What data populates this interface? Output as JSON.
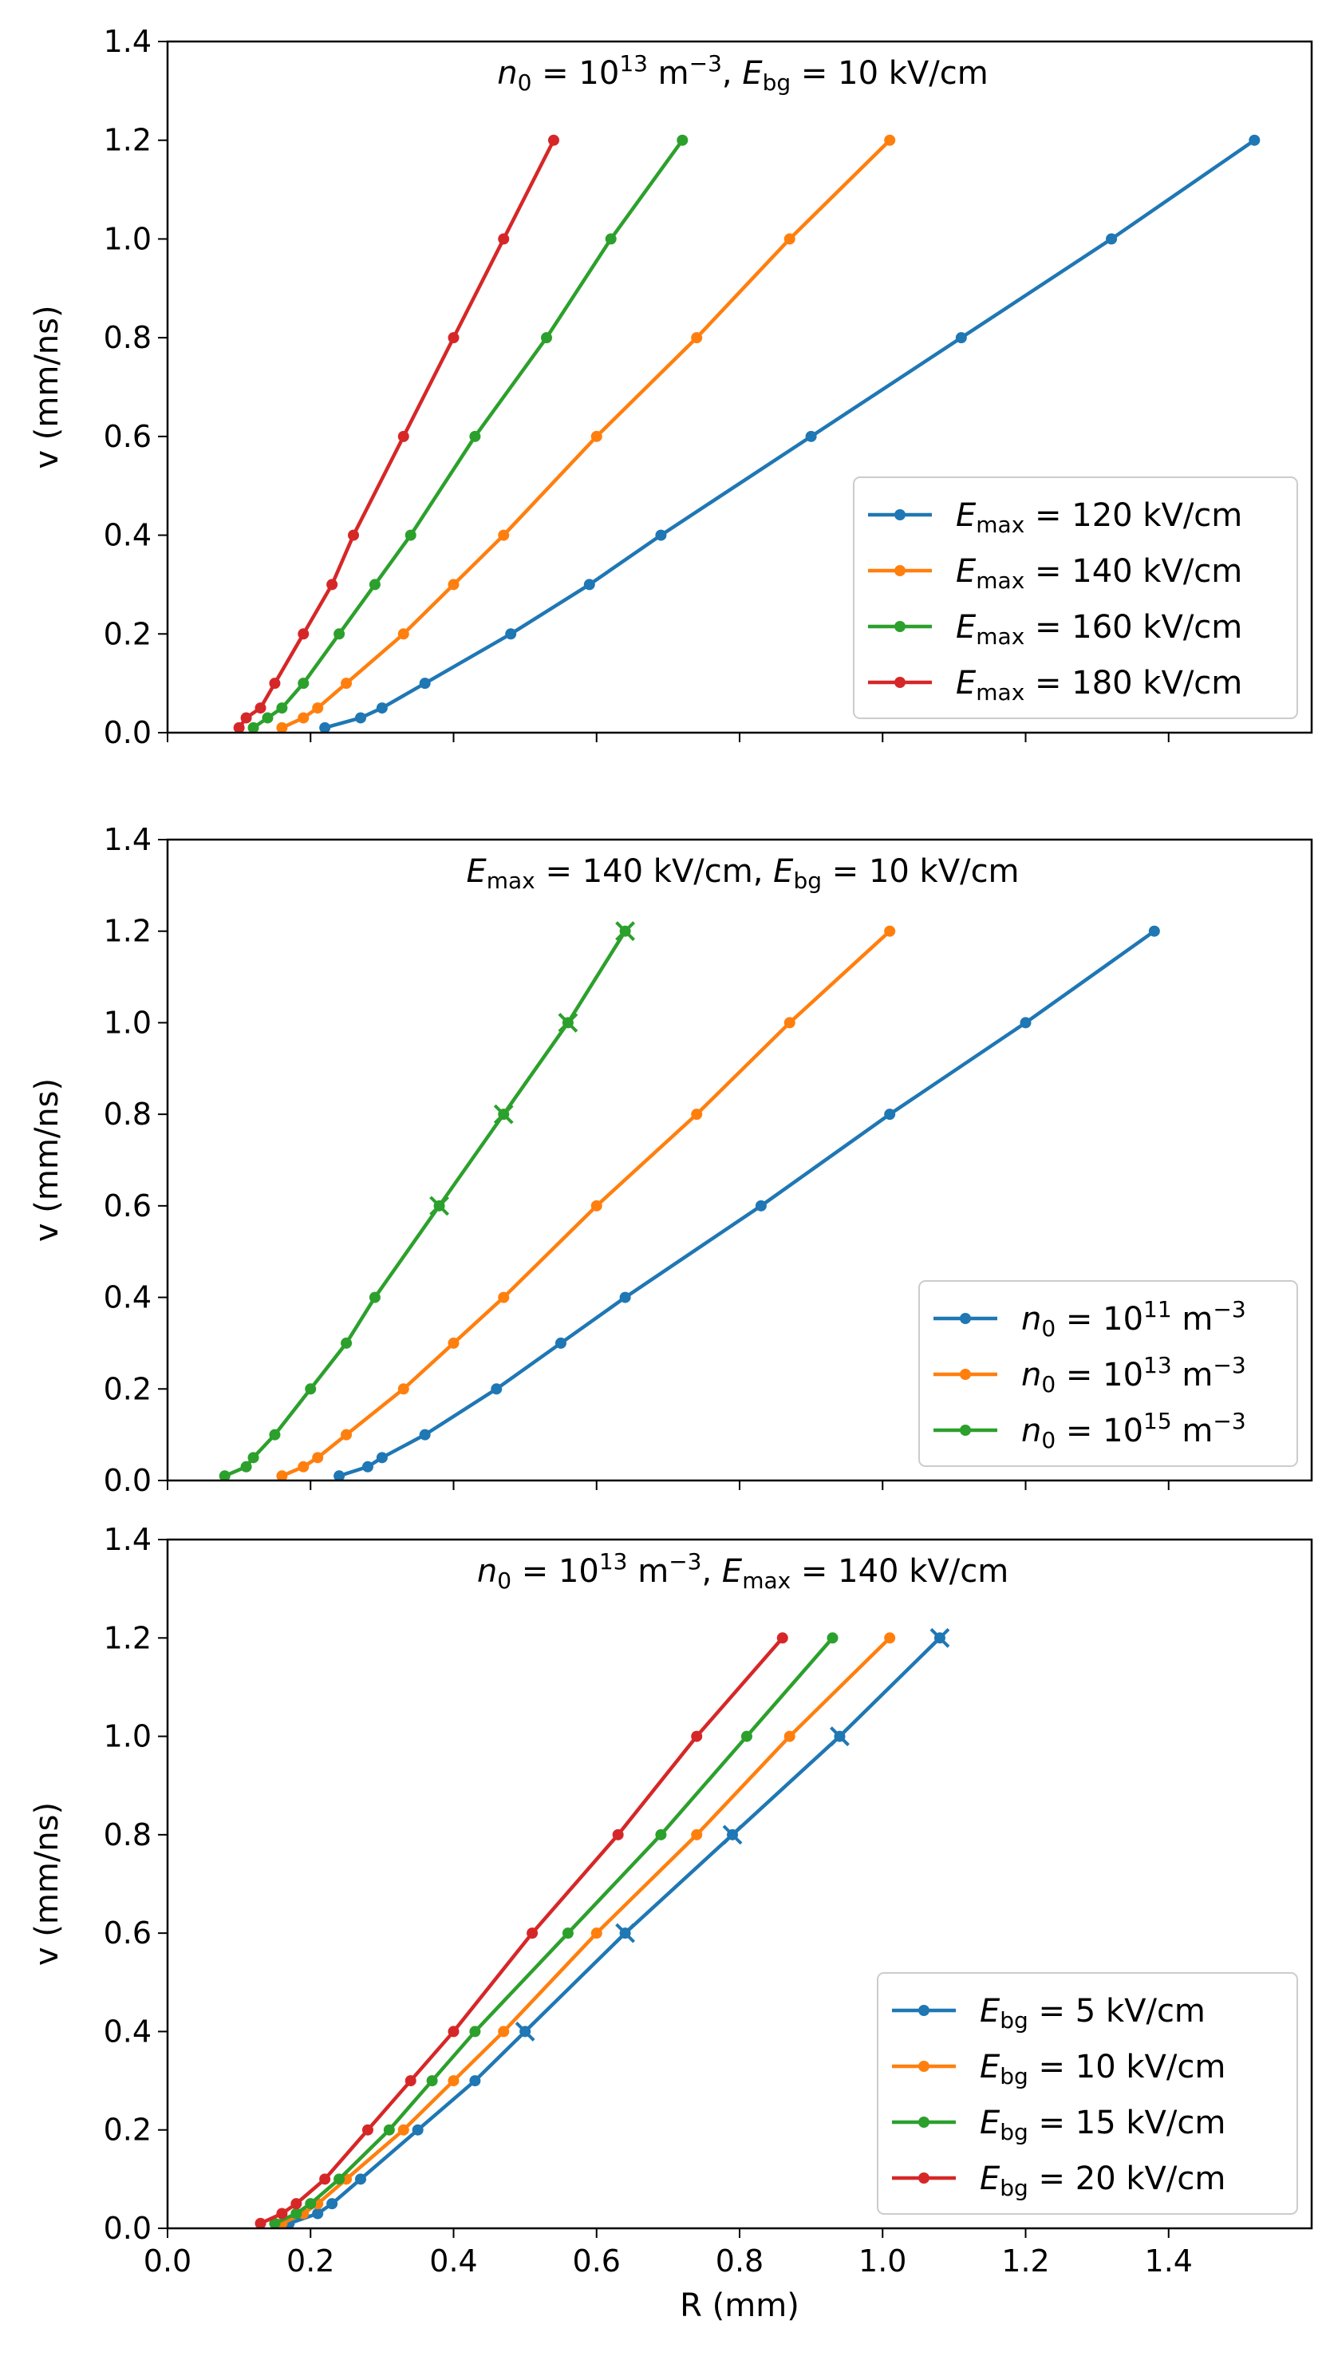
{
  "chart_data": [
    {
      "type": "line",
      "title_parts": [
        {
          "t": "n",
          "style": "italic"
        },
        {
          "t": "0",
          "style": "sub"
        },
        {
          "t": " = 10"
        },
        {
          "t": "13",
          "style": "sup"
        },
        {
          "t": " m"
        },
        {
          "t": "−3",
          "style": "sup"
        },
        {
          "t": ", "
        },
        {
          "t": "E",
          "style": "italic"
        },
        {
          "t": "bg",
          "style": "sub"
        },
        {
          "t": " = 10 kV/cm"
        }
      ],
      "xlabel": "R (mm)",
      "ylabel": "v (mm/ns)",
      "xlim": [
        0.0,
        1.6
      ],
      "ylim": [
        0.0,
        1.4
      ],
      "xticks": [
        "0.0",
        "0.2",
        "0.4",
        "0.6",
        "0.8",
        "1.0",
        "1.2",
        "1.4"
      ],
      "yticks": [
        "0.0",
        "0.2",
        "0.4",
        "0.6",
        "0.8",
        "1.0",
        "1.2",
        "1.4"
      ],
      "show_xticklabels": false,
      "legend_position": "lower-right",
      "series": [
        {
          "name": "E_max = 120 kV/cm",
          "label_parts": [
            {
              "t": "E",
              "style": "italic"
            },
            {
              "t": "max",
              "style": "sub"
            },
            {
              "t": " = 120 kV/cm"
            }
          ],
          "color": "#1f77b4",
          "x": [
            0.22,
            0.27,
            0.3,
            0.36,
            0.48,
            0.59,
            0.69,
            0.9,
            1.11,
            1.32,
            1.52
          ],
          "y": [
            0.01,
            0.03,
            0.05,
            0.1,
            0.2,
            0.3,
            0.4,
            0.6,
            0.8,
            1.0,
            1.2
          ]
        },
        {
          "name": "E_max = 140 kV/cm",
          "label_parts": [
            {
              "t": "E",
              "style": "italic"
            },
            {
              "t": "max",
              "style": "sub"
            },
            {
              "t": " = 140 kV/cm"
            }
          ],
          "color": "#ff7f0e",
          "x": [
            0.16,
            0.19,
            0.21,
            0.25,
            0.33,
            0.4,
            0.47,
            0.6,
            0.74,
            0.87,
            1.01
          ],
          "y": [
            0.01,
            0.03,
            0.05,
            0.1,
            0.2,
            0.3,
            0.4,
            0.6,
            0.8,
            1.0,
            1.2
          ]
        },
        {
          "name": "E_max = 160 kV/cm",
          "label_parts": [
            {
              "t": "E",
              "style": "italic"
            },
            {
              "t": "max",
              "style": "sub"
            },
            {
              "t": " = 160 kV/cm"
            }
          ],
          "color": "#2ca02c",
          "x": [
            0.12,
            0.14,
            0.16,
            0.19,
            0.24,
            0.29,
            0.34,
            0.43,
            0.53,
            0.62,
            0.72
          ],
          "y": [
            0.01,
            0.03,
            0.05,
            0.1,
            0.2,
            0.3,
            0.4,
            0.6,
            0.8,
            1.0,
            1.2
          ]
        },
        {
          "name": "E_max = 180 kV/cm",
          "label_parts": [
            {
              "t": "E",
              "style": "italic"
            },
            {
              "t": "max",
              "style": "sub"
            },
            {
              "t": " = 180 kV/cm"
            }
          ],
          "color": "#d62728",
          "x": [
            0.1,
            0.11,
            0.13,
            0.15,
            0.19,
            0.23,
            0.26,
            0.33,
            0.4,
            0.47,
            0.54
          ],
          "y": [
            0.01,
            0.03,
            0.05,
            0.1,
            0.2,
            0.3,
            0.4,
            0.6,
            0.8,
            1.0,
            1.2
          ]
        }
      ]
    },
    {
      "type": "line",
      "title_parts": [
        {
          "t": "E",
          "style": "italic"
        },
        {
          "t": "max",
          "style": "sub"
        },
        {
          "t": " = 140 kV/cm, "
        },
        {
          "t": "E",
          "style": "italic"
        },
        {
          "t": "bg",
          "style": "sub"
        },
        {
          "t": " = 10 kV/cm"
        }
      ],
      "xlabel": "R (mm)",
      "ylabel": "v (mm/ns)",
      "xlim": [
        0.0,
        1.6
      ],
      "ylim": [
        0.0,
        1.4
      ],
      "xticks": [
        "0.0",
        "0.2",
        "0.4",
        "0.6",
        "0.8",
        "1.0",
        "1.2",
        "1.4"
      ],
      "yticks": [
        "0.0",
        "0.2",
        "0.4",
        "0.6",
        "0.8",
        "1.0",
        "1.2",
        "1.4"
      ],
      "show_xticklabels": false,
      "legend_position": "lower-right",
      "series": [
        {
          "name": "n0 = 10^11 m^-3",
          "label_parts": [
            {
              "t": "n",
              "style": "italic"
            },
            {
              "t": "0",
              "style": "sub"
            },
            {
              "t": " = 10"
            },
            {
              "t": "11",
              "style": "sup"
            },
            {
              "t": " m"
            },
            {
              "t": "−3",
              "style": "sup"
            }
          ],
          "color": "#1f77b4",
          "x": [
            0.24,
            0.28,
            0.3,
            0.36,
            0.46,
            0.55,
            0.64,
            0.83,
            1.01,
            1.2,
            1.38
          ],
          "y": [
            0.01,
            0.03,
            0.05,
            0.1,
            0.2,
            0.3,
            0.4,
            0.6,
            0.8,
            1.0,
            1.2
          ]
        },
        {
          "name": "n0 = 10^13 m^-3",
          "label_parts": [
            {
              "t": "n",
              "style": "italic"
            },
            {
              "t": "0",
              "style": "sub"
            },
            {
              "t": " = 10"
            },
            {
              "t": "13",
              "style": "sup"
            },
            {
              "t": " m"
            },
            {
              "t": "−3",
              "style": "sup"
            }
          ],
          "color": "#ff7f0e",
          "x": [
            0.16,
            0.19,
            0.21,
            0.25,
            0.33,
            0.4,
            0.47,
            0.6,
            0.74,
            0.87,
            1.01
          ],
          "y": [
            0.01,
            0.03,
            0.05,
            0.1,
            0.2,
            0.3,
            0.4,
            0.6,
            0.8,
            1.0,
            1.2
          ]
        },
        {
          "name": "n0 = 10^15 m^-3",
          "label_parts": [
            {
              "t": "n",
              "style": "italic"
            },
            {
              "t": "0",
              "style": "sub"
            },
            {
              "t": " = 10"
            },
            {
              "t": "15",
              "style": "sup"
            },
            {
              "t": " m"
            },
            {
              "t": "−3",
              "style": "sup"
            }
          ],
          "color": "#2ca02c",
          "x": [
            0.08,
            0.11,
            0.12,
            0.15,
            0.2,
            0.25,
            0.29,
            0.38,
            0.47,
            0.56,
            0.64
          ],
          "y": [
            0.01,
            0.03,
            0.05,
            0.1,
            0.2,
            0.3,
            0.4,
            0.6,
            0.8,
            1.0,
            1.2
          ],
          "x_marker_points": [
            0.6,
            0.8,
            1.0,
            1.2
          ]
        }
      ]
    },
    {
      "type": "line",
      "title_parts": [
        {
          "t": "n",
          "style": "italic"
        },
        {
          "t": "0",
          "style": "sub"
        },
        {
          "t": " = 10"
        },
        {
          "t": "13",
          "style": "sup"
        },
        {
          "t": " m"
        },
        {
          "t": "−3",
          "style": "sup"
        },
        {
          "t": ", "
        },
        {
          "t": "E",
          "style": "italic"
        },
        {
          "t": "max",
          "style": "sub"
        },
        {
          "t": " = 140 kV/cm"
        }
      ],
      "xlabel": "R (mm)",
      "ylabel": "v (mm/ns)",
      "xlim": [
        0.0,
        1.6
      ],
      "ylim": [
        0.0,
        1.4
      ],
      "xticks": [
        "0.0",
        "0.2",
        "0.4",
        "0.6",
        "0.8",
        "1.0",
        "1.2",
        "1.4"
      ],
      "yticks": [
        "0.0",
        "0.2",
        "0.4",
        "0.6",
        "0.8",
        "1.0",
        "1.2",
        "1.4"
      ],
      "show_xticklabels": true,
      "legend_position": "lower-right",
      "series": [
        {
          "name": "E_bg = 5 kV/cm",
          "label_parts": [
            {
              "t": "E",
              "style": "italic"
            },
            {
              "t": "bg",
              "style": "sub"
            },
            {
              "t": " = 5 kV/cm"
            }
          ],
          "color": "#1f77b4",
          "x": [
            0.17,
            0.21,
            0.23,
            0.27,
            0.35,
            0.43,
            0.5,
            0.64,
            0.79,
            0.94,
            1.08
          ],
          "y": [
            0.01,
            0.03,
            0.05,
            0.1,
            0.2,
            0.3,
            0.4,
            0.6,
            0.8,
            1.0,
            1.2
          ],
          "x_marker_points": [
            0.4,
            0.6,
            0.8,
            1.0,
            1.2
          ]
        },
        {
          "name": "E_bg = 10 kV/cm",
          "label_parts": [
            {
              "t": "E",
              "style": "italic"
            },
            {
              "t": "bg",
              "style": "sub"
            },
            {
              "t": " = 10 kV/cm"
            }
          ],
          "color": "#ff7f0e",
          "x": [
            0.16,
            0.19,
            0.21,
            0.25,
            0.33,
            0.4,
            0.47,
            0.6,
            0.74,
            0.87,
            1.01
          ],
          "y": [
            0.01,
            0.03,
            0.05,
            0.1,
            0.2,
            0.3,
            0.4,
            0.6,
            0.8,
            1.0,
            1.2
          ]
        },
        {
          "name": "E_bg = 15 kV/cm",
          "label_parts": [
            {
              "t": "E",
              "style": "italic"
            },
            {
              "t": "bg",
              "style": "sub"
            },
            {
              "t": " = 15 kV/cm"
            }
          ],
          "color": "#2ca02c",
          "x": [
            0.15,
            0.18,
            0.2,
            0.24,
            0.31,
            0.37,
            0.43,
            0.56,
            0.69,
            0.81,
            0.93
          ],
          "y": [
            0.01,
            0.03,
            0.05,
            0.1,
            0.2,
            0.3,
            0.4,
            0.6,
            0.8,
            1.0,
            1.2
          ]
        },
        {
          "name": "E_bg = 20 kV/cm",
          "label_parts": [
            {
              "t": "E",
              "style": "italic"
            },
            {
              "t": "bg",
              "style": "sub"
            },
            {
              "t": " = 20 kV/cm"
            }
          ],
          "color": "#d62728",
          "x": [
            0.13,
            0.16,
            0.18,
            0.22,
            0.28,
            0.34,
            0.4,
            0.51,
            0.63,
            0.74,
            0.86
          ],
          "y": [
            0.01,
            0.03,
            0.05,
            0.1,
            0.2,
            0.3,
            0.4,
            0.6,
            0.8,
            1.0,
            1.2
          ]
        }
      ]
    }
  ]
}
